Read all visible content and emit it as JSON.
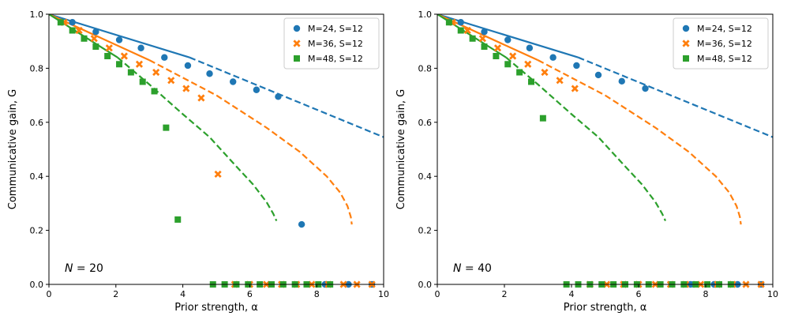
{
  "colors": {
    "series1": "#1f77b4",
    "series2": "#ff7f0e",
    "series3": "#2ca02c"
  },
  "chart_data": [
    {
      "type": "scatter",
      "panel_label": "N = 20",
      "panel_label_var": "N",
      "panel_label_value": "= 20",
      "xlabel": "Prior strength, α",
      "ylabel": "Communicative gain, G",
      "xlim": [
        0,
        10
      ],
      "ylim": [
        0,
        1
      ],
      "xticks": [
        0,
        2,
        4,
        6,
        8,
        10
      ],
      "yticks": [
        0.0,
        0.2,
        0.4,
        0.6,
        0.8,
        1.0
      ],
      "xtick_labels": [
        "0",
        "2",
        "4",
        "6",
        "8",
        "10"
      ],
      "ytick_labels": [
        "0.0",
        "0.2",
        "0.4",
        "0.6",
        "0.8",
        "1.0"
      ],
      "legend_position": "top-right",
      "series": [
        {
          "name": "M=24, S=12",
          "marker": "circle",
          "color": "#1f77b4",
          "points": [
            [
              0.7,
              0.97
            ],
            [
              1.4,
              0.935
            ],
            [
              2.1,
              0.905
            ],
            [
              2.75,
              0.875
            ],
            [
              3.45,
              0.84
            ],
            [
              4.15,
              0.81
            ],
            [
              4.8,
              0.78
            ],
            [
              5.5,
              0.75
            ],
            [
              6.2,
              0.72
            ],
            [
              6.85,
              0.695
            ],
            [
              7.55,
              0.222
            ],
            [
              8.25,
              0.0
            ],
            [
              8.95,
              0.0
            ],
            [
              9.65,
              0.0
            ]
          ],
          "curve_solid": [
            [
              0,
              1
            ],
            [
              4.2,
              0.84
            ]
          ],
          "curve_dashed": [
            [
              4.2,
              0.84
            ],
            [
              10,
              0.545
            ]
          ]
        },
        {
          "name": "M=36, S=12",
          "marker": "x",
          "color": "#ff7f0e",
          "points": [
            [
              0.45,
              0.97
            ],
            [
              0.9,
              0.94
            ],
            [
              1.35,
              0.91
            ],
            [
              1.8,
              0.875
            ],
            [
              2.25,
              0.845
            ],
            [
              2.7,
              0.815
            ],
            [
              3.2,
              0.785
            ],
            [
              3.65,
              0.755
            ],
            [
              4.1,
              0.725
            ],
            [
              4.55,
              0.69
            ],
            [
              5.05,
              0.408
            ],
            [
              5.55,
              0.0
            ],
            [
              6.0,
              0.0
            ],
            [
              6.5,
              0.0
            ],
            [
              6.95,
              0.0
            ],
            [
              7.4,
              0.0
            ],
            [
              7.85,
              0.0
            ],
            [
              8.35,
              0.0
            ],
            [
              8.8,
              0.0
            ],
            [
              9.2,
              0.0
            ],
            [
              9.65,
              0.0
            ]
          ],
          "curve_solid": [
            [
              0,
              1
            ],
            [
              3.0,
              0.83
            ]
          ],
          "curve_dashed": [
            [
              3.0,
              0.83
            ],
            [
              5.0,
              0.7
            ],
            [
              6.5,
              0.58
            ],
            [
              7.5,
              0.49
            ],
            [
              8.3,
              0.4
            ],
            [
              8.7,
              0.34
            ],
            [
              8.92,
              0.29
            ],
            [
              9.02,
              0.25
            ],
            [
              9.05,
              0.222
            ]
          ]
        },
        {
          "name": "M=48, S=12",
          "marker": "square",
          "color": "#2ca02c",
          "points": [
            [
              0.35,
              0.97
            ],
            [
              0.7,
              0.94
            ],
            [
              1.05,
              0.91
            ],
            [
              1.4,
              0.88
            ],
            [
              1.75,
              0.845
            ],
            [
              2.1,
              0.815
            ],
            [
              2.45,
              0.785
            ],
            [
              2.8,
              0.75
            ],
            [
              3.15,
              0.715
            ],
            [
              3.5,
              0.58
            ],
            [
              3.85,
              0.24
            ],
            [
              4.9,
              0.0
            ],
            [
              5.25,
              0.0
            ],
            [
              5.6,
              0.0
            ],
            [
              5.95,
              0.0
            ],
            [
              6.3,
              0.0
            ],
            [
              6.65,
              0.0
            ],
            [
              7.0,
              0.0
            ],
            [
              7.35,
              0.0
            ],
            [
              7.7,
              0.0
            ],
            [
              8.05,
              0.0
            ],
            [
              8.4,
              0.0
            ]
          ],
          "curve_solid": [
            [
              0,
              1
            ],
            [
              2.05,
              0.84
            ]
          ],
          "curve_dashed": [
            [
              2.05,
              0.84
            ],
            [
              3.0,
              0.74
            ],
            [
              4.0,
              0.63
            ],
            [
              4.8,
              0.545
            ],
            [
              5.5,
              0.45
            ],
            [
              6.1,
              0.37
            ],
            [
              6.5,
              0.305
            ],
            [
              6.7,
              0.262
            ],
            [
              6.8,
              0.235
            ]
          ]
        }
      ]
    },
    {
      "type": "scatter",
      "panel_label": "N = 40",
      "panel_label_var": "N",
      "panel_label_value": "= 40",
      "xlabel": "Prior strength, α",
      "ylabel": "Communicative gain, G",
      "xlim": [
        0,
        10
      ],
      "ylim": [
        0,
        1
      ],
      "xticks": [
        0,
        2,
        4,
        6,
        8,
        10
      ],
      "yticks": [
        0.0,
        0.2,
        0.4,
        0.6,
        0.8,
        1.0
      ],
      "xtick_labels": [
        "0",
        "2",
        "4",
        "6",
        "8",
        "10"
      ],
      "ytick_labels": [
        "0.0",
        "0.2",
        "0.4",
        "0.6",
        "0.8",
        "1.0"
      ],
      "legend_position": "top-right",
      "series": [
        {
          "name": "M=24, S=12",
          "marker": "circle",
          "color": "#1f77b4",
          "points": [
            [
              0.7,
              0.97
            ],
            [
              1.4,
              0.935
            ],
            [
              2.1,
              0.905
            ],
            [
              2.75,
              0.875
            ],
            [
              3.45,
              0.84
            ],
            [
              4.15,
              0.81
            ],
            [
              4.8,
              0.775
            ],
            [
              5.5,
              0.752
            ],
            [
              6.2,
              0.725
            ],
            [
              7.55,
              0.0
            ],
            [
              7.65,
              0.0
            ],
            [
              8.25,
              0.0
            ],
            [
              8.95,
              0.0
            ],
            [
              9.65,
              0.0
            ]
          ],
          "curve_solid": [
            [
              0,
              1
            ],
            [
              4.2,
              0.84
            ]
          ],
          "curve_dashed": [
            [
              4.2,
              0.84
            ],
            [
              10,
              0.545
            ]
          ]
        },
        {
          "name": "M=36, S=12",
          "marker": "x",
          "color": "#ff7f0e",
          "points": [
            [
              0.45,
              0.97
            ],
            [
              0.9,
              0.94
            ],
            [
              1.35,
              0.91
            ],
            [
              1.8,
              0.875
            ],
            [
              2.25,
              0.845
            ],
            [
              2.7,
              0.815
            ],
            [
              3.2,
              0.785
            ],
            [
              3.65,
              0.755
            ],
            [
              4.1,
              0.725
            ],
            [
              4.55,
              0.0
            ],
            [
              5.05,
              0.0
            ],
            [
              5.55,
              0.0
            ],
            [
              6.0,
              0.0
            ],
            [
              6.5,
              0.0
            ],
            [
              6.95,
              0.0
            ],
            [
              7.4,
              0.0
            ],
            [
              7.85,
              0.0
            ],
            [
              8.35,
              0.0
            ],
            [
              8.8,
              0.0
            ],
            [
              9.2,
              0.0
            ],
            [
              9.65,
              0.0
            ]
          ],
          "curve_solid": [
            [
              0,
              1
            ],
            [
              3.0,
              0.83
            ]
          ],
          "curve_dashed": [
            [
              3.0,
              0.83
            ],
            [
              5.0,
              0.7
            ],
            [
              6.5,
              0.58
            ],
            [
              7.5,
              0.49
            ],
            [
              8.3,
              0.4
            ],
            [
              8.7,
              0.34
            ],
            [
              8.92,
              0.29
            ],
            [
              9.02,
              0.25
            ],
            [
              9.05,
              0.222
            ]
          ]
        },
        {
          "name": "M=48, S=12",
          "marker": "square",
          "color": "#2ca02c",
          "points": [
            [
              0.35,
              0.97
            ],
            [
              0.7,
              0.94
            ],
            [
              1.05,
              0.91
            ],
            [
              1.4,
              0.88
            ],
            [
              1.75,
              0.845
            ],
            [
              2.1,
              0.815
            ],
            [
              2.45,
              0.785
            ],
            [
              2.8,
              0.75
            ],
            [
              3.15,
              0.615
            ],
            [
              3.85,
              0.0
            ],
            [
              4.2,
              0.0
            ],
            [
              4.55,
              0.0
            ],
            [
              4.9,
              0.0
            ],
            [
              5.25,
              0.0
            ],
            [
              5.6,
              0.0
            ],
            [
              5.95,
              0.0
            ],
            [
              6.3,
              0.0
            ],
            [
              6.65,
              0.0
            ],
            [
              7.0,
              0.0
            ],
            [
              7.35,
              0.0
            ],
            [
              7.7,
              0.0
            ],
            [
              8.05,
              0.0
            ],
            [
              8.4,
              0.0
            ],
            [
              8.75,
              0.0
            ]
          ],
          "curve_solid": [
            [
              0,
              1
            ],
            [
              2.05,
              0.84
            ]
          ],
          "curve_dashed": [
            [
              2.05,
              0.84
            ],
            [
              3.0,
              0.74
            ],
            [
              4.0,
              0.63
            ],
            [
              4.8,
              0.545
            ],
            [
              5.5,
              0.45
            ],
            [
              6.1,
              0.37
            ],
            [
              6.5,
              0.305
            ],
            [
              6.7,
              0.262
            ],
            [
              6.8,
              0.235
            ]
          ]
        }
      ]
    }
  ]
}
